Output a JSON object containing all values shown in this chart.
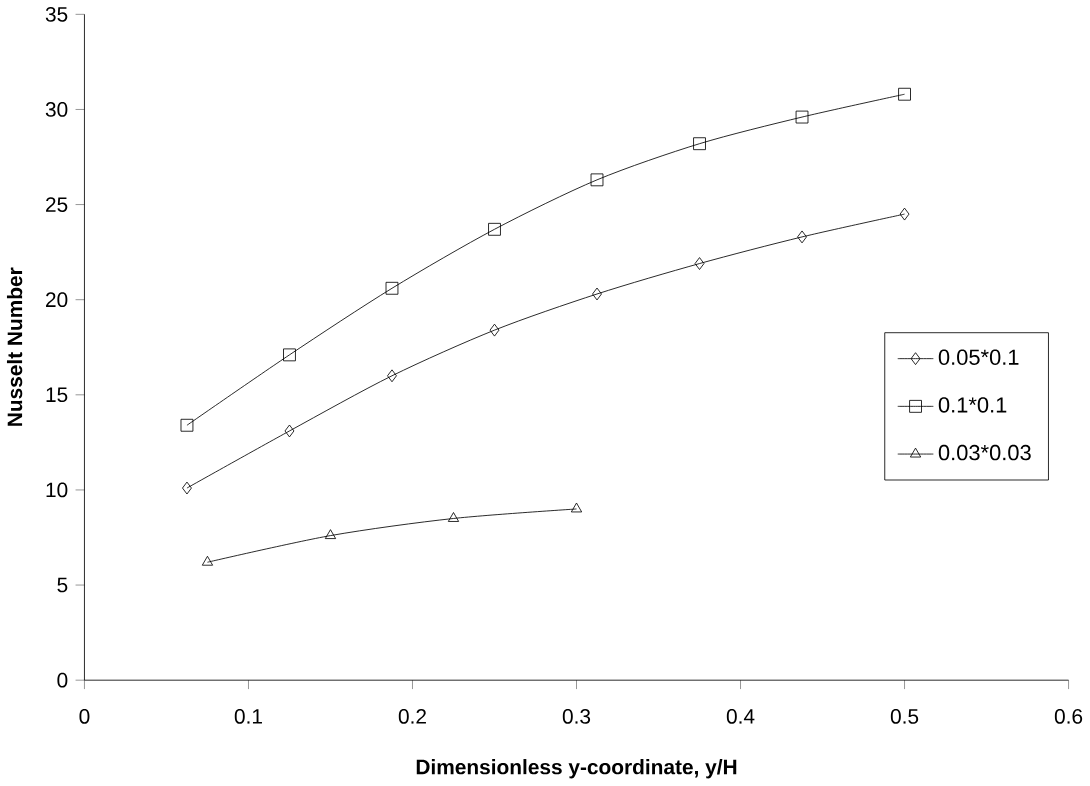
{
  "chart_data": {
    "type": "line",
    "xlabel": "Dimensionless y-coordinate, y/H",
    "ylabel": "Nusselt Number",
    "xlim": [
      0,
      0.6
    ],
    "ylim": [
      0,
      35
    ],
    "xticks": [
      0,
      0.1,
      0.2,
      0.3,
      0.4,
      0.5,
      0.6
    ],
    "yticks": [
      0,
      5,
      10,
      15,
      20,
      25,
      30,
      35
    ],
    "legend": "right",
    "grid": false,
    "series": [
      {
        "name": "0.05*0.1",
        "color": "#000000",
        "marker": "diamond",
        "x": [
          0.0625,
          0.125,
          0.1875,
          0.25,
          0.3125,
          0.375,
          0.4375,
          0.5
        ],
        "values": [
          10.1,
          13.1,
          16.0,
          18.4,
          20.3,
          21.9,
          23.3,
          24.5
        ]
      },
      {
        "name": "0.1*0.1",
        "color": "#000000",
        "marker": "square",
        "x": [
          0.0625,
          0.125,
          0.1875,
          0.25,
          0.3125,
          0.375,
          0.4375,
          0.5
        ],
        "values": [
          13.4,
          17.1,
          20.6,
          23.7,
          26.3,
          28.2,
          29.6,
          30.8
        ]
      },
      {
        "name": "0.03*0.03",
        "color": "#000000",
        "marker": "triangle",
        "x": [
          0.075,
          0.15,
          0.225,
          0.3
        ],
        "values": [
          6.2,
          7.6,
          8.5,
          9.0
        ]
      }
    ]
  }
}
